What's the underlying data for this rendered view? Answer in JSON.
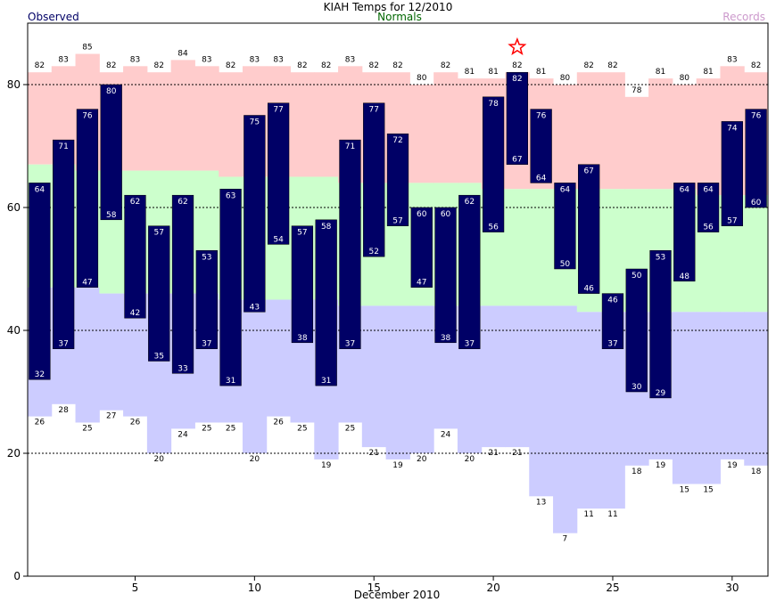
{
  "header": {
    "title": "KIAH Temps for 12/2010",
    "left": "Observed",
    "center": "Normals",
    "right": "Records"
  },
  "colors": {
    "observed": "#000066",
    "normals": "#006600",
    "records": "#cc99cc",
    "record_high_band": "#ffcccc",
    "normal_band": "#ccffcc",
    "record_low_band": "#ccccff",
    "star": "#ff0000"
  },
  "chart_data": {
    "type": "bar",
    "title": "KIAH Temps for 12/2010",
    "xlabel": "December 2010",
    "ylabel": "",
    "ylim": [
      0,
      90
    ],
    "xlim": [
      0.5,
      31.5
    ],
    "x_ticks": [
      5,
      10,
      15,
      20,
      25,
      30
    ],
    "y_ticks": [
      0,
      20,
      40,
      60,
      80
    ],
    "dashed_grid_y": [
      20,
      40,
      60,
      80
    ],
    "days": [
      1,
      2,
      3,
      4,
      5,
      6,
      7,
      8,
      9,
      10,
      11,
      12,
      13,
      14,
      15,
      16,
      17,
      18,
      19,
      20,
      21,
      22,
      23,
      24,
      25,
      26,
      27,
      28,
      29,
      30,
      31
    ],
    "observed_high": [
      64,
      71,
      76,
      80,
      62,
      57,
      62,
      53,
      63,
      75,
      77,
      57,
      58,
      71,
      77,
      72,
      60,
      60,
      62,
      78,
      82,
      76,
      64,
      67,
      46,
      50,
      53,
      64,
      64,
      74,
      76
    ],
    "observed_low": [
      32,
      37,
      47,
      58,
      42,
      35,
      33,
      37,
      31,
      43,
      54,
      38,
      31,
      37,
      52,
      57,
      47,
      38,
      37,
      56,
      67,
      64,
      50,
      46,
      37,
      30,
      29,
      48,
      56,
      57,
      60
    ],
    "record_high": [
      82,
      83,
      85,
      82,
      83,
      82,
      84,
      83,
      82,
      83,
      83,
      82,
      82,
      83,
      82,
      82,
      80,
      82,
      81,
      81,
      82,
      81,
      80,
      82,
      82,
      78,
      81,
      80,
      81,
      83,
      82
    ],
    "record_low": [
      26,
      28,
      25,
      27,
      26,
      20,
      24,
      25,
      25,
      20,
      26,
      25,
      19,
      25,
      21,
      19,
      20,
      24,
      20,
      21,
      21,
      13,
      7,
      11,
      11,
      18,
      19,
      15,
      15,
      19,
      18
    ],
    "normal_high": [
      67,
      67,
      66,
      66,
      66,
      66,
      66,
      66,
      65,
      65,
      65,
      65,
      65,
      64,
      64,
      64,
      64,
      64,
      64,
      63,
      63,
      63,
      63,
      63,
      63,
      63,
      63,
      63,
      62,
      62,
      62
    ],
    "normal_low": [
      47,
      47,
      47,
      46,
      46,
      46,
      46,
      46,
      45,
      45,
      45,
      45,
      45,
      44,
      44,
      44,
      44,
      44,
      44,
      44,
      44,
      44,
      44,
      43,
      43,
      43,
      43,
      43,
      43,
      43,
      43
    ],
    "record_set_days": [
      21
    ]
  }
}
